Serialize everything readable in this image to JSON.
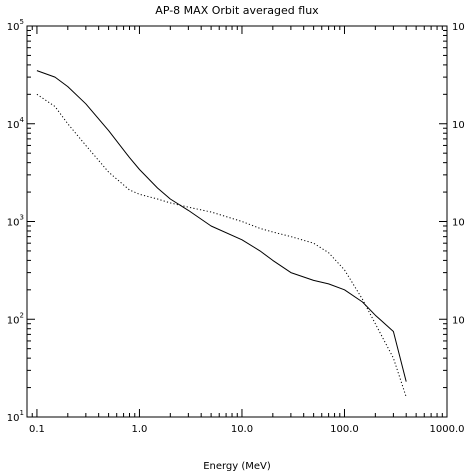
{
  "chart_data": {
    "type": "line",
    "title": "AP-8 MAX Orbit averaged flux",
    "xlabel": "Energy (MeV)",
    "ylabel": "",
    "x_scale": "log",
    "y_scale": "log",
    "xlim": [
      0.08,
      1000.0
    ],
    "ylim": [
      10,
      100000
    ],
    "grid": false,
    "legend": "none",
    "x_ticks": [
      {
        "value": 0.1,
        "label": "0.1"
      },
      {
        "value": 1.0,
        "label": "1.0"
      },
      {
        "value": 10.0,
        "label": "10.0"
      },
      {
        "value": 100.0,
        "label": "100.0"
      },
      {
        "value": 1000.0,
        "label": "1000.0"
      }
    ],
    "y_ticks": [
      {
        "value": 10,
        "mantissa": "10",
        "exponent": "1"
      },
      {
        "value": 100,
        "mantissa": "10",
        "exponent": "2"
      },
      {
        "value": 1000,
        "mantissa": "10",
        "exponent": "3"
      },
      {
        "value": 10000,
        "mantissa": "10",
        "exponent": "4"
      },
      {
        "value": 100000,
        "mantissa": "10",
        "exponent": "5"
      }
    ],
    "y_ticks_right": [
      {
        "value": 100,
        "label": "10"
      },
      {
        "value": 1000,
        "label": "10"
      },
      {
        "value": 10000,
        "label": "10"
      },
      {
        "value": 100000,
        "label": "10"
      }
    ],
    "series": [
      {
        "style": "solid",
        "color": "#000000",
        "x": [
          0.1,
          0.15,
          0.2,
          0.3,
          0.5,
          0.8,
          1.0,
          1.5,
          2.0,
          3.0,
          5.0,
          10.0,
          15.0,
          20.0,
          30.0,
          50.0,
          70.0,
          100.0,
          150.0,
          200.0,
          300.0,
          400.0
        ],
        "y": [
          35000,
          30000,
          24000,
          16000,
          8500,
          4500,
          3400,
          2200,
          1700,
          1300,
          900,
          650,
          500,
          400,
          300,
          250,
          230,
          200,
          150,
          110,
          75,
          23
        ]
      },
      {
        "style": "dotted",
        "color": "#000000",
        "x": [
          0.1,
          0.15,
          0.2,
          0.3,
          0.5,
          0.8,
          1.0,
          1.5,
          2.0,
          3.0,
          5.0,
          10.0,
          15.0,
          20.0,
          30.0,
          50.0,
          70.0,
          100.0,
          150.0,
          200.0,
          300.0,
          400.0
        ],
        "y": [
          20000,
          15000,
          10000,
          6000,
          3200,
          2100,
          1900,
          1700,
          1550,
          1400,
          1250,
          1000,
          850,
          780,
          700,
          600,
          480,
          320,
          160,
          90,
          40,
          16
        ]
      }
    ]
  }
}
